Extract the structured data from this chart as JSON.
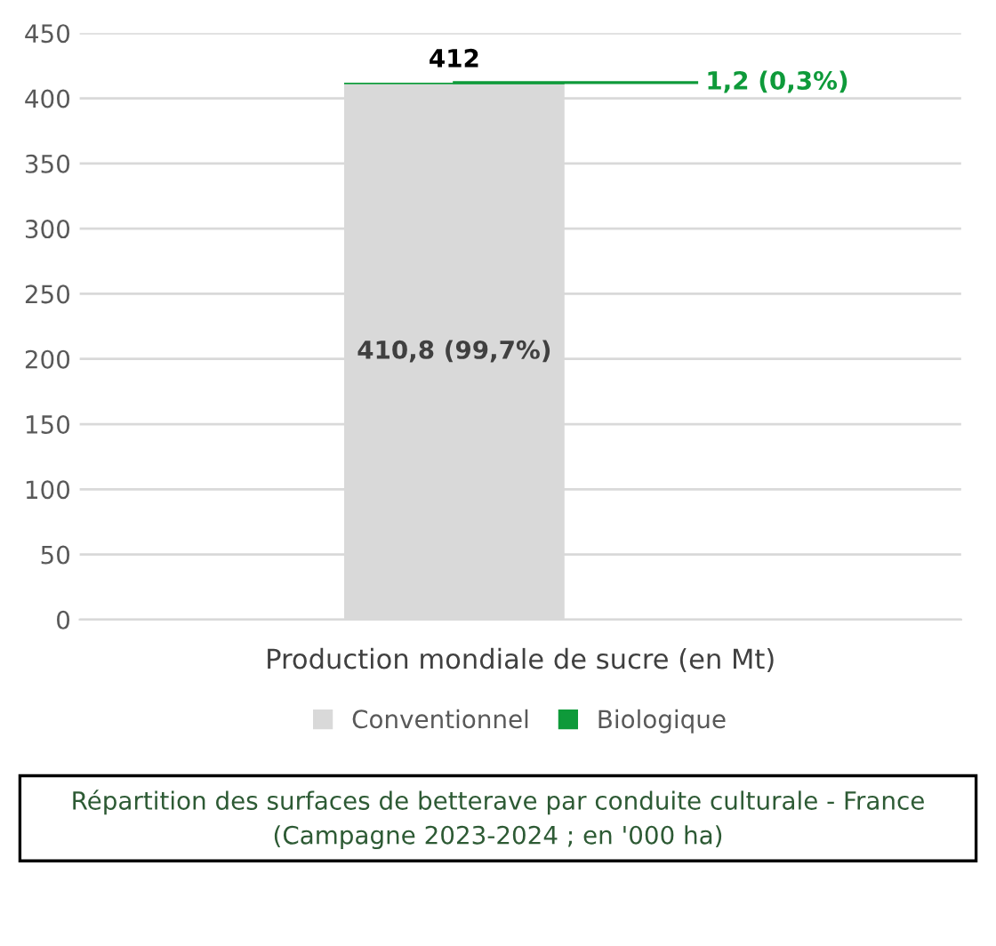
{
  "chart_data": {
    "type": "bar",
    "stacked": true,
    "title": "Répartition des surfaces de betterave par conduite culturale - France",
    "subtitle": "(Campagne 2023-2024 ; en '000 ha)",
    "xlabel": "Production mondiale de sucre (en Mt)",
    "categories": [
      null
    ],
    "series": [
      {
        "name": "Conventionnel",
        "color": "#d9d9d9",
        "values": [
          410.8
        ],
        "value_labels": [
          "410,8 (99,7%)"
        ]
      },
      {
        "name": "Biologique",
        "color": "#0e9a3a",
        "values": [
          1.2
        ],
        "value_labels": [
          "1,2 (0,3%)"
        ]
      }
    ],
    "totals": [
      "412"
    ],
    "ylim": [
      0,
      450
    ],
    "yticks": [
      0,
      50,
      100,
      150,
      200,
      250,
      300,
      350,
      400,
      450
    ],
    "grid": "y",
    "legend": "bottom"
  }
}
